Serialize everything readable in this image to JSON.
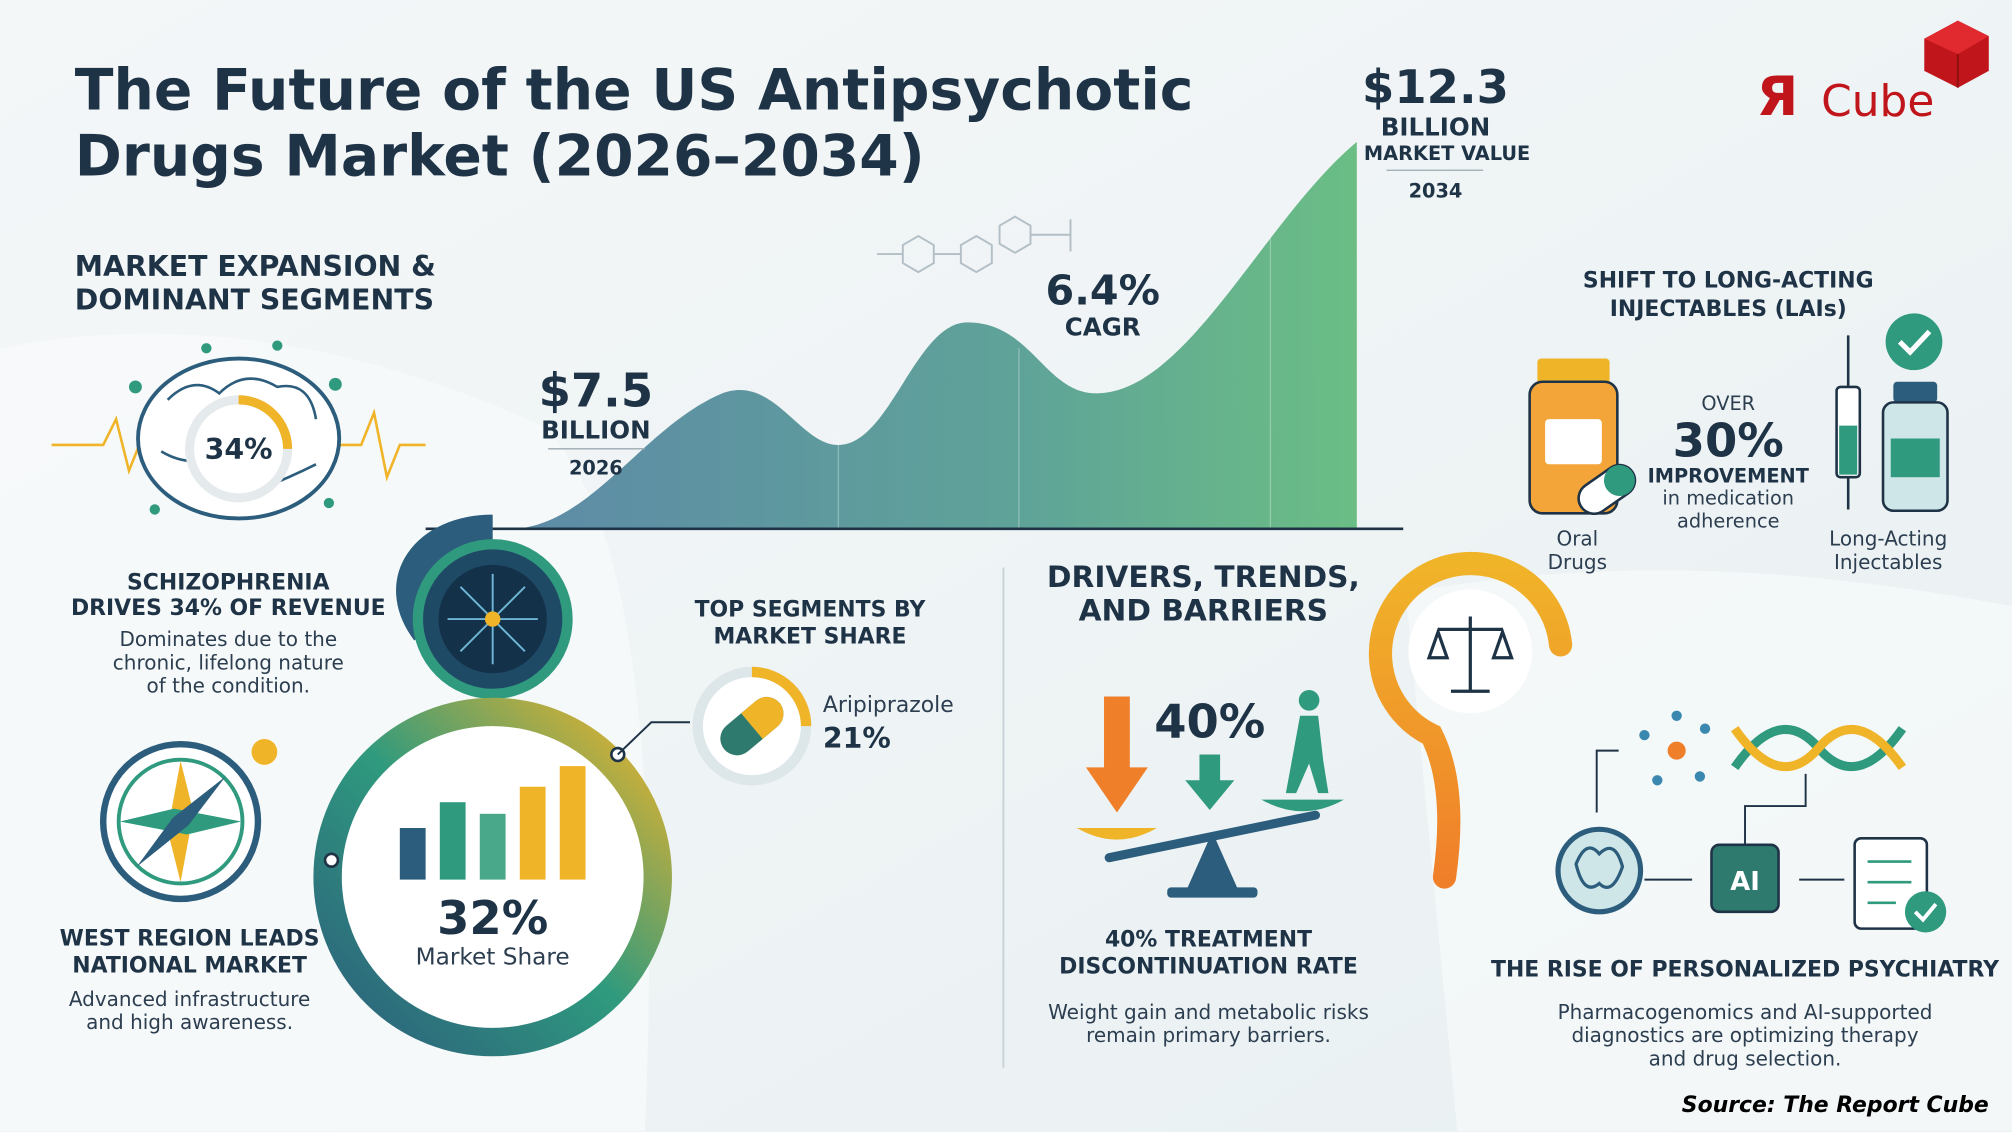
{
  "header": {
    "title_lines": [
      "The Future of the US Antipsychotic",
      "Drugs Market (2026–2034)"
    ]
  },
  "logo": {
    "mark": "Я",
    "text": "Cube"
  },
  "growth": {
    "end": {
      "value": "$12.3",
      "unit": "BILLION",
      "label": "MARKET VALUE",
      "year": "2034"
    },
    "start": {
      "value": "$7.5",
      "unit": "BILLION",
      "year": "2026"
    },
    "cagr": {
      "value": "6.4%",
      "label": "CAGR"
    }
  },
  "segments": {
    "heading_lines": [
      "MARKET EXPANSION &",
      "DOMINANT SEGMENTS"
    ],
    "brain_percent": "34%",
    "schizophrenia": {
      "heading_lines": [
        "SCHIZOPHRENIA",
        "DRIVES 34% OF REVENUE"
      ],
      "body_lines": [
        "Dominates due to the",
        "chronic, lifelong nature",
        "of the condition."
      ]
    },
    "west": {
      "heading_lines": [
        "WEST REGION LEADS",
        "NATIONAL MARKET"
      ],
      "body_lines": [
        "Advanced infrastructure",
        "and high awareness."
      ]
    },
    "share": {
      "value": "32%",
      "label": "Market Share"
    },
    "top": {
      "heading_lines": [
        "TOP SEGMENTS BY",
        "MARKET SHARE"
      ],
      "drug": "Aripiprazole",
      "value": "21%"
    }
  },
  "drivers": {
    "heading_lines": [
      "DRIVERS, TRENDS,",
      "AND BARRIERS"
    ],
    "scale_value": "40%",
    "stat_lines": [
      "40% TREATMENT",
      "DISCONTINUATION RATE"
    ],
    "body_lines": [
      "Weight gain and metabolic risks",
      "remain primary barriers."
    ]
  },
  "lai": {
    "heading_lines": [
      "SHIFT TO LONG-ACTING",
      "INJECTABLES (LAIs)"
    ],
    "over": "OVER",
    "value": "30%",
    "improvement": "IMPROVEMENT",
    "detail_lines": [
      "in medication",
      "adherence"
    ],
    "oral_lines": [
      "Oral",
      "Drugs"
    ],
    "injectable_lines": [
      "Long-Acting",
      "Injectables"
    ]
  },
  "personalized": {
    "chip": "AI",
    "heading": "THE RISE OF PERSONALIZED PSYCHIATRY",
    "body_lines": [
      "Pharmacogenomics and AI-supported",
      "diagnostics are optimizing therapy",
      "and drug selection."
    ]
  },
  "source": "Source: The Report Cube"
}
